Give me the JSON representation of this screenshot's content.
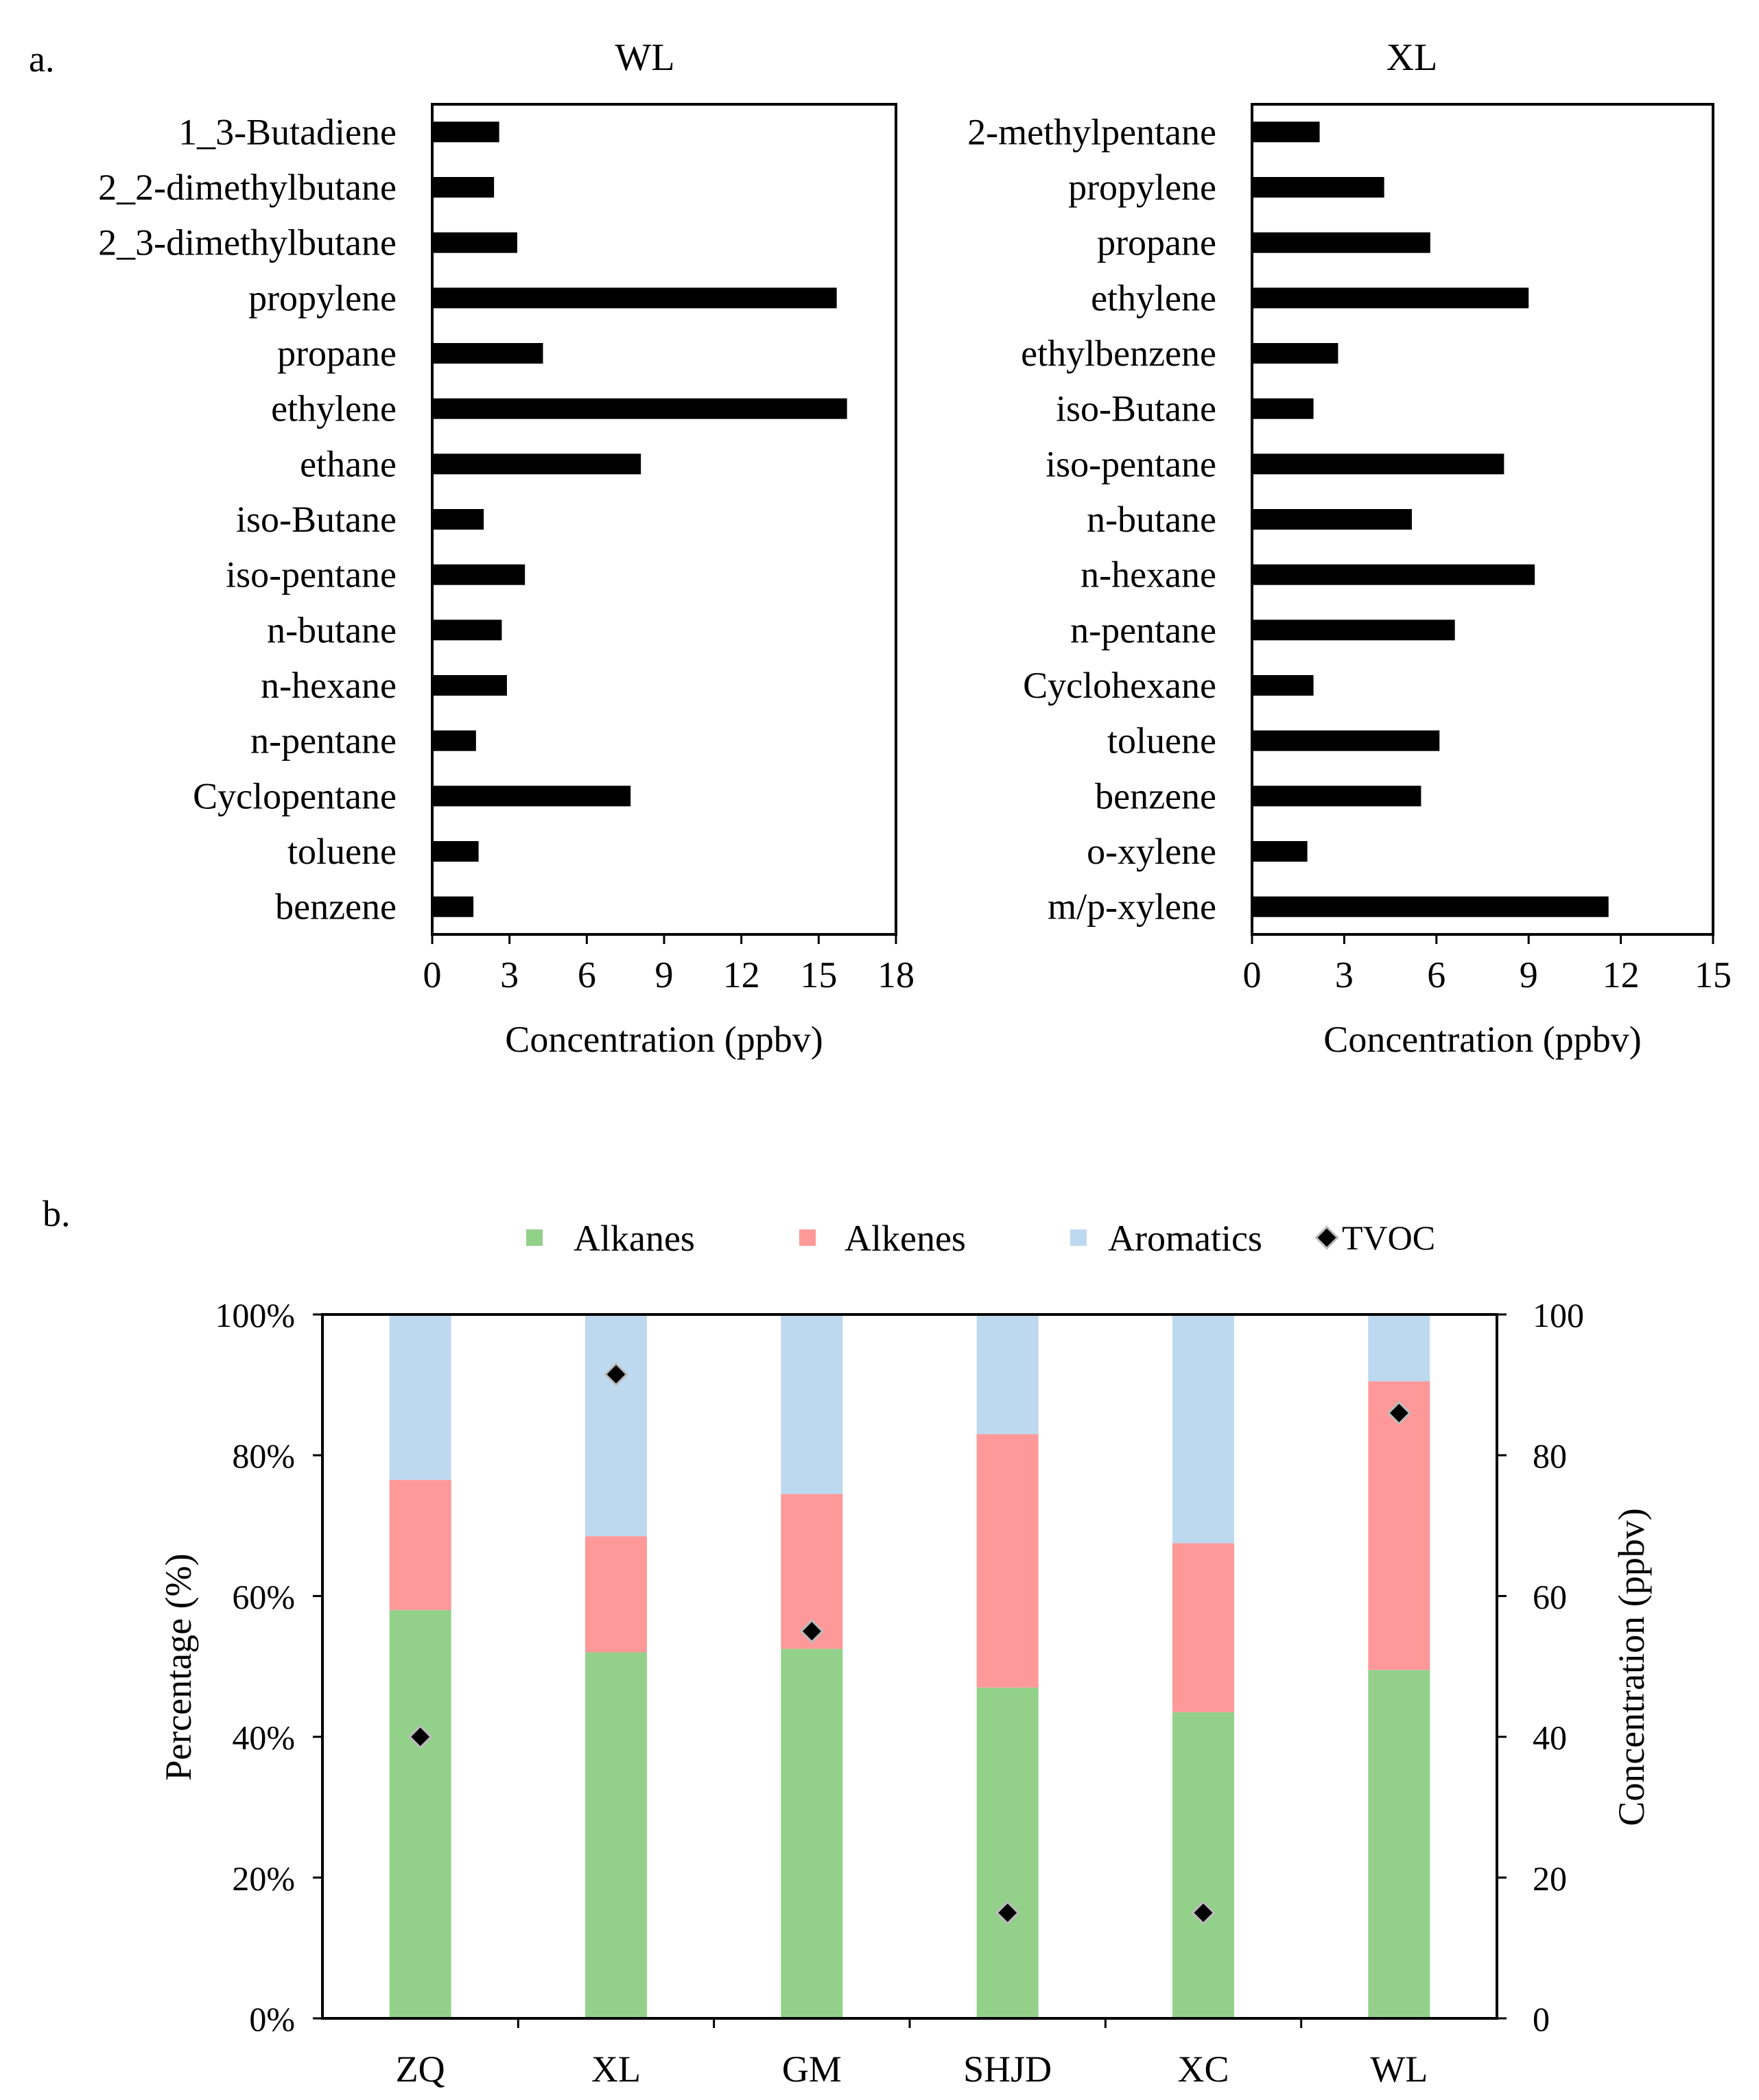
{
  "colors": {
    "bar": "#000000",
    "alkanes": "#93d18a",
    "alkenes": "#ff9999",
    "aromatics": "#bdd9f0",
    "tvoc_marker": "#000000",
    "tvoc_outline": "#bbbbbb"
  },
  "panel_a_label": "a.",
  "panel_b_label": "b.",
  "chart_data": [
    {
      "type": "bar",
      "orientation": "horizontal",
      "title": "WL",
      "xlabel": "Concentration (ppbv)",
      "xlim": [
        0,
        18
      ],
      "xticks": [
        0,
        3,
        6,
        9,
        12,
        15,
        18
      ],
      "categories": [
        "1_3-Butadiene",
        "2_2-dimethylbutane",
        "2_3-dimethylbutane",
        "propylene",
        "propane",
        "ethylene",
        "ethane",
        "iso-Butane",
        "iso-pentane",
        "n-butane",
        "n-hexane",
        "n-pentane",
        "Cyclopentane",
        "toluene",
        "benzene"
      ],
      "values": [
        2.6,
        2.4,
        3.3,
        15.7,
        4.3,
        16.1,
        8.1,
        2.0,
        3.6,
        2.7,
        2.9,
        1.7,
        7.7,
        1.8,
        1.6
      ]
    },
    {
      "type": "bar",
      "orientation": "horizontal",
      "title": "XL",
      "xlabel": "Concentration (ppbv)",
      "xlim": [
        0,
        15
      ],
      "xticks": [
        0,
        3,
        6,
        9,
        12,
        15
      ],
      "categories": [
        "2-methylpentane",
        "propylene",
        "propane",
        "ethylene",
        "ethylbenzene",
        "iso-Butane",
        "iso-pentane",
        "n-butane",
        "n-hexane",
        "n-pentane",
        "Cyclohexane",
        "toluene",
        "benzene",
        "o-xylene",
        "m/p-xylene"
      ],
      "values": [
        2.2,
        4.3,
        5.8,
        9.0,
        2.8,
        2.0,
        8.2,
        5.2,
        9.2,
        6.6,
        2.0,
        6.1,
        5.5,
        1.8,
        11.6
      ]
    },
    {
      "type": "bar",
      "stacked": true,
      "categories": [
        "ZQ",
        "XL",
        "GM",
        "SHJD",
        "XC",
        "WL"
      ],
      "ylabel": "Percentage (%)",
      "ylim": [
        0,
        100
      ],
      "yticks": [
        "0%",
        "20%",
        "40%",
        "60%",
        "80%",
        "100%"
      ],
      "y2label": "Concentration (ppbv)",
      "y2lim": [
        0,
        100
      ],
      "y2ticks": [
        "0",
        "20",
        "40",
        "60",
        "80",
        "100"
      ],
      "series": [
        {
          "name": "Alkanes",
          "values": [
            58,
            52,
            52.5,
            47,
            43.5,
            49.5
          ]
        },
        {
          "name": "Alkenes",
          "values": [
            18.5,
            16.5,
            22,
            36,
            24,
            41
          ]
        },
        {
          "name": "Aromatics",
          "values": [
            23.5,
            31.5,
            25.5,
            17,
            32.5,
            9.5
          ]
        }
      ],
      "tvoc": {
        "name": "TVOC",
        "values": [
          40,
          91.5,
          55,
          15,
          15,
          86
        ]
      },
      "legend": [
        "Alkanes",
        "Alkenes",
        "Aromatics",
        "TVOC"
      ],
      "legend_position": "top"
    }
  ]
}
